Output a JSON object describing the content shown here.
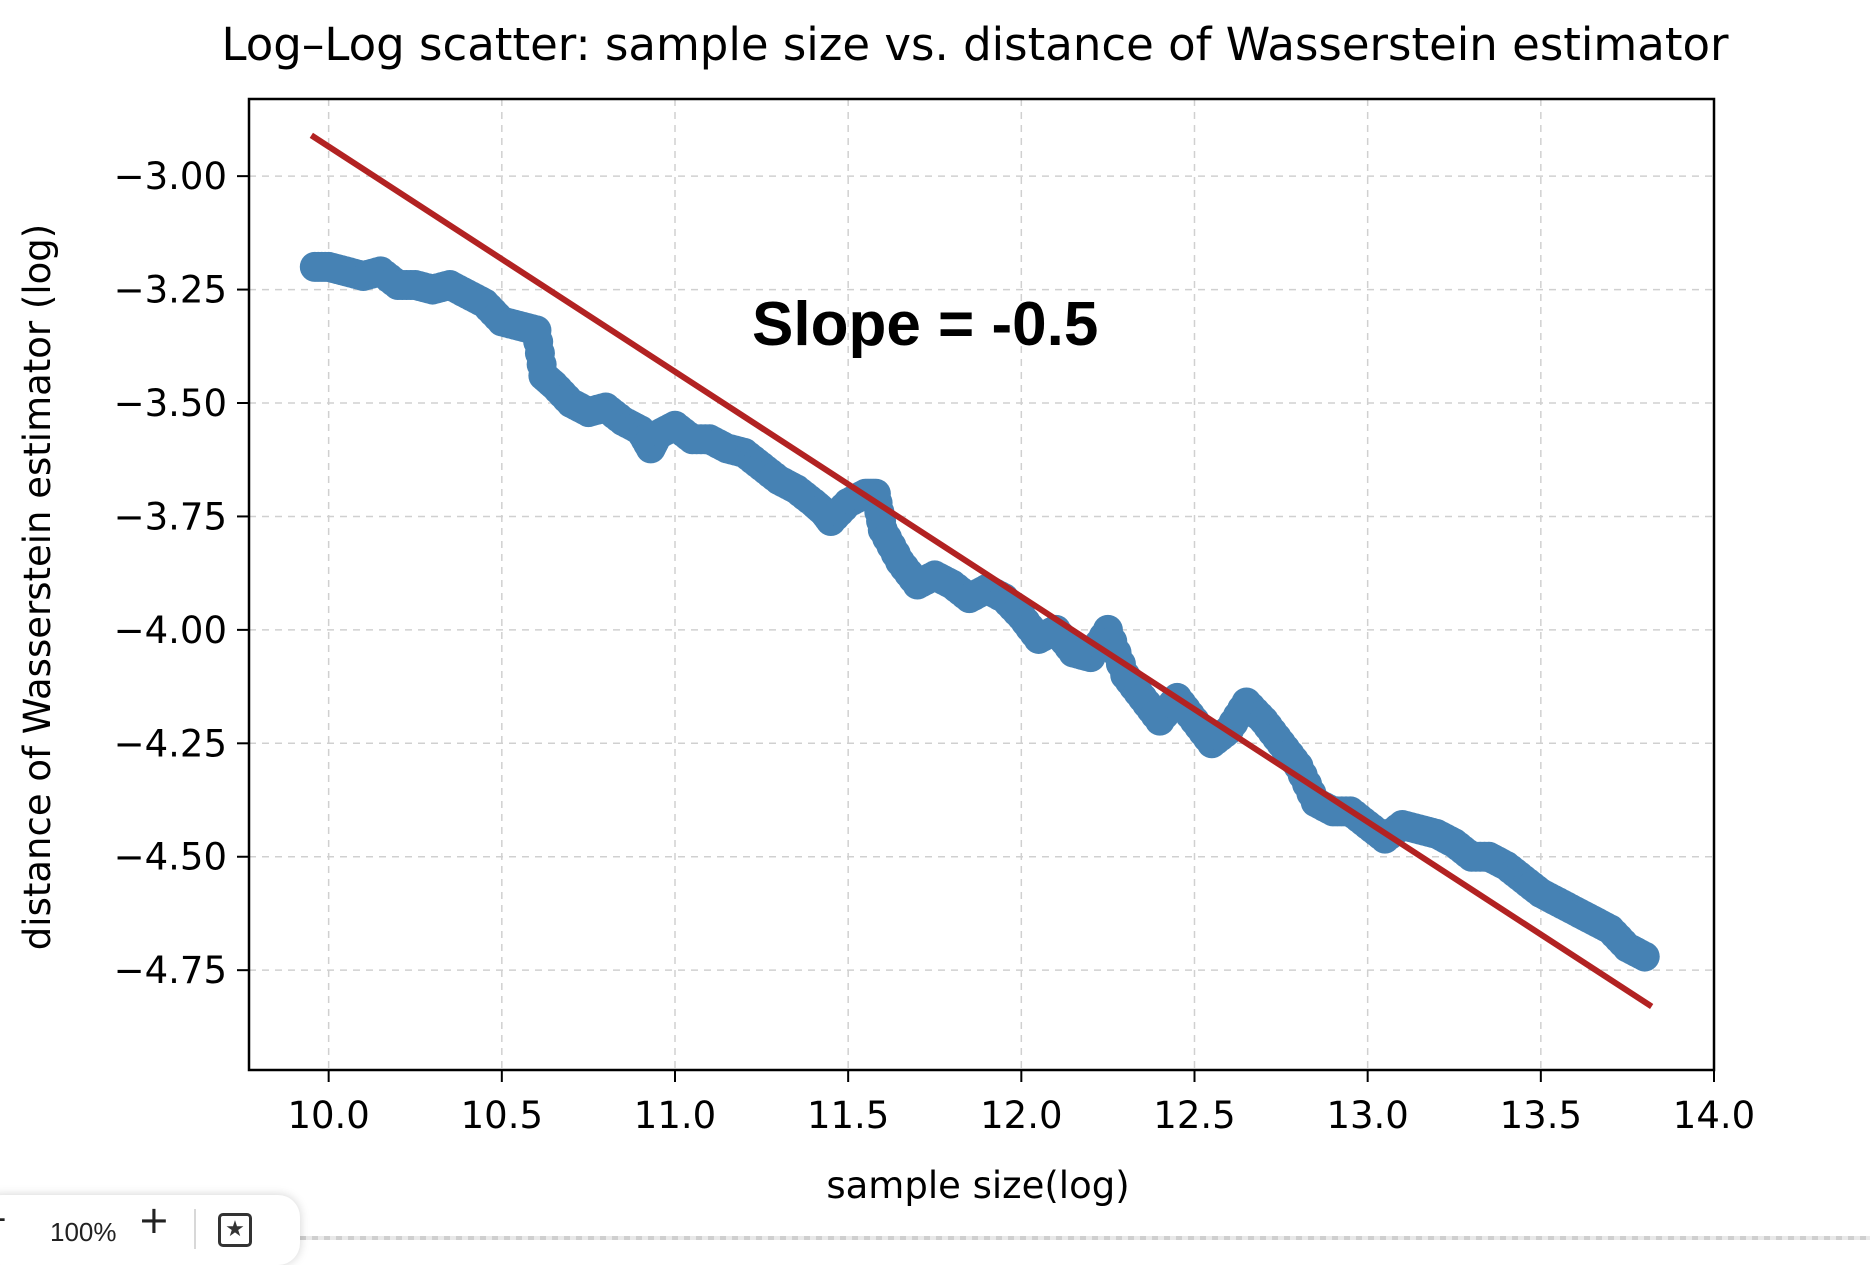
{
  "chart_data": {
    "type": "scatter",
    "title": "Log–Log scatter: sample size vs. distance of Wasserstein estimator",
    "xlabel": "sample size(log)",
    "ylabel": "distance of Wasserstein estimator (log)",
    "xlim": [
      9.77,
      14.0
    ],
    "ylim": [
      -4.97,
      -2.83
    ],
    "xticks": [
      10.0,
      10.5,
      11.0,
      11.5,
      12.0,
      12.5,
      13.0,
      13.5,
      14.0
    ],
    "xtick_labels": [
      "10.0",
      "10.5",
      "11.0",
      "11.5",
      "12.0",
      "12.5",
      "13.0",
      "13.5",
      "14.0"
    ],
    "yticks": [
      -3.0,
      -3.25,
      -3.5,
      -3.75,
      -4.0,
      -4.25,
      -4.5,
      -4.75
    ],
    "ytick_labels": [
      "−3.00",
      "−3.25",
      "−3.50",
      "−3.75",
      "−4.00",
      "−4.25",
      "−4.50",
      "−4.75"
    ],
    "grid": true,
    "series": [
      {
        "color": "#4682b4",
        "x": [
          9.96,
          10.0,
          10.05,
          10.1,
          10.15,
          10.2,
          10.25,
          10.3,
          10.35,
          10.4,
          10.45,
          10.5,
          10.55,
          10.6,
          10.62,
          10.65,
          10.7,
          10.75,
          10.8,
          10.85,
          10.9,
          10.93,
          10.95,
          11.0,
          11.05,
          11.1,
          11.15,
          11.2,
          11.25,
          11.3,
          11.35,
          11.4,
          11.43,
          11.45,
          11.5,
          11.55,
          11.58,
          11.6,
          11.65,
          11.7,
          11.75,
          11.8,
          11.85,
          11.9,
          11.95,
          12.0,
          12.05,
          12.1,
          12.15,
          12.2,
          12.25,
          12.3,
          12.35,
          12.4,
          12.45,
          12.5,
          12.55,
          12.6,
          12.65,
          12.7,
          12.75,
          12.8,
          12.85,
          12.9,
          12.95,
          13.0,
          13.05,
          13.1,
          13.15,
          13.2,
          13.25,
          13.3,
          13.35,
          13.4,
          13.45,
          13.5,
          13.55,
          13.6,
          13.65,
          13.7,
          13.75,
          13.8
        ],
        "y": [
          -3.2,
          -3.2,
          -3.21,
          -3.22,
          -3.21,
          -3.24,
          -3.24,
          -3.25,
          -3.24,
          -3.26,
          -3.28,
          -3.32,
          -3.33,
          -3.34,
          -3.44,
          -3.46,
          -3.5,
          -3.52,
          -3.51,
          -3.54,
          -3.56,
          -3.6,
          -3.57,
          -3.55,
          -3.58,
          -3.58,
          -3.6,
          -3.61,
          -3.64,
          -3.67,
          -3.69,
          -3.72,
          -3.74,
          -3.76,
          -3.72,
          -3.7,
          -3.7,
          -3.78,
          -3.85,
          -3.9,
          -3.88,
          -3.9,
          -3.93,
          -3.91,
          -3.93,
          -3.97,
          -4.02,
          -4.0,
          -4.05,
          -4.06,
          -4.0,
          -4.1,
          -4.15,
          -4.2,
          -4.15,
          -4.2,
          -4.25,
          -4.22,
          -4.16,
          -4.2,
          -4.25,
          -4.3,
          -4.38,
          -4.4,
          -4.4,
          -4.43,
          -4.46,
          -4.43,
          -4.44,
          -4.45,
          -4.47,
          -4.5,
          -4.5,
          -4.52,
          -4.55,
          -4.58,
          -4.6,
          -4.62,
          -4.64,
          -4.66,
          -4.7,
          -4.72
        ]
      }
    ],
    "fit_line": {
      "color": "#b22222",
      "x": [
        9.95,
        13.82
      ],
      "y": [
        -2.91,
        -4.83
      ]
    },
    "annotation": "Slope = -0.5"
  },
  "viewer": {
    "zoom_minus": "-",
    "zoom_level": "100%",
    "zoom_plus": "+",
    "bookmark_icon": "bookmark-star-icon"
  }
}
